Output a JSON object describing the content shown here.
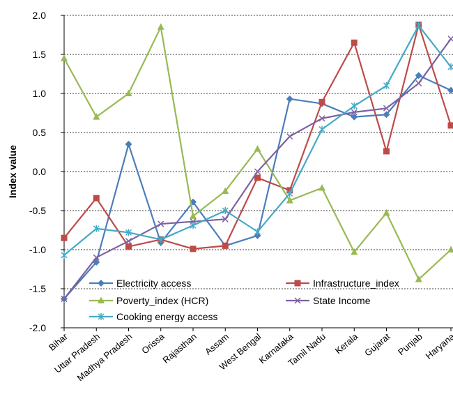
{
  "chart_data": {
    "type": "line",
    "ylabel": "Index value",
    "ylim": [
      -2.0,
      2.0
    ],
    "yticks": [
      "2.0",
      "1.5",
      "1.0",
      "0.5",
      "0.0",
      "-0.5",
      "-1.0",
      "-1.5",
      "-2.0"
    ],
    "ytick_values": [
      2.0,
      1.5,
      1.0,
      0.5,
      0.0,
      -0.5,
      -1.0,
      -1.5,
      -2.0
    ],
    "grid": "horizontal dashed",
    "legend_placement": "bottom-inside",
    "categories": [
      "Bihar",
      "Uttar Pradesh",
      "Madhya Pradesh",
      "Orissa",
      "Rajasthan",
      "Assam",
      "West Bengal",
      "Karnataka",
      "Tamil Nadu",
      "Kerala",
      "Gujarat",
      "Punjab",
      "Haryana"
    ],
    "series": [
      {
        "name": "Electricity access",
        "color": "#4a7ebb",
        "marker": "diamond",
        "values": [
          -1.63,
          -1.16,
          0.35,
          -0.91,
          -0.39,
          -0.95,
          -0.82,
          0.93,
          0.87,
          0.7,
          0.73,
          1.23,
          1.04
        ]
      },
      {
        "name": "Infrastructure_index",
        "color": "#be4b48",
        "marker": "square",
        "values": [
          -0.85,
          -0.34,
          -0.96,
          -0.87,
          -0.99,
          -0.95,
          -0.08,
          -0.24,
          0.89,
          1.65,
          0.26,
          1.88,
          0.59
        ]
      },
      {
        "name": "Poverty_index (HCR)",
        "color": "#98b954",
        "marker": "triangle",
        "values": [
          1.45,
          0.7,
          1.0,
          1.85,
          -0.57,
          -0.25,
          0.29,
          -0.37,
          -0.21,
          -1.03,
          -0.53,
          -1.38,
          -1.0
        ]
      },
      {
        "name": "State Income",
        "color": "#7d60a0",
        "marker": "x",
        "values": [
          -1.63,
          -1.1,
          -0.89,
          -0.67,
          -0.64,
          -0.61,
          0.0,
          0.45,
          0.68,
          0.76,
          0.81,
          1.13,
          1.7
        ]
      },
      {
        "name": "Cooking energy access",
        "color": "#46aac5",
        "marker": "star",
        "values": [
          -1.07,
          -0.73,
          -0.78,
          -0.87,
          -0.69,
          -0.5,
          -0.77,
          -0.28,
          0.54,
          0.84,
          1.1,
          1.87,
          1.34
        ]
      }
    ]
  }
}
